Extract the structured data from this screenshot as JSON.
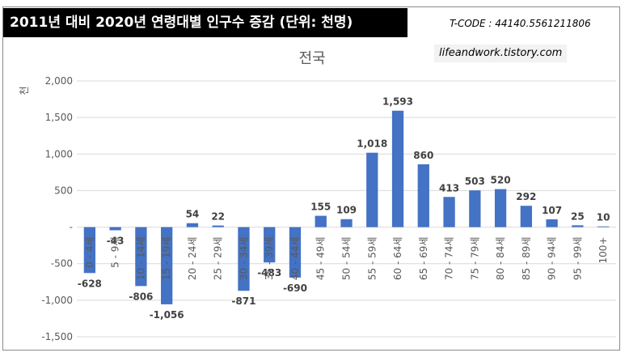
{
  "header": {
    "title": "2011년 대비 2020년 연령대별 인구수 증감 (단위: 천명)",
    "tcode": "T-CODE : 44140.5561211806",
    "blog": "lifeandwork.tistory.com"
  },
  "chart_data": {
    "type": "bar",
    "title": "전국",
    "ylabel": "천",
    "ylim": [
      -1500,
      2000
    ],
    "yticks": [
      2000,
      1500,
      1000,
      500,
      0,
      -500,
      -1000,
      -1500
    ],
    "ytick_labels": [
      "2,000",
      "1,500",
      "1,000",
      "500",
      "-",
      "-500",
      "-1,000",
      "-1,500"
    ],
    "categories": [
      "0 - 4세",
      "5 - 9세",
      "10 - 14세",
      "15 - 19세",
      "20 - 24세",
      "25 - 29세",
      "30 - 34세",
      "35 - 39세",
      "40 - 44세",
      "45 - 49세",
      "50 - 54세",
      "55 - 59세",
      "60 - 64세",
      "65 - 69세",
      "70 - 74세",
      "75 - 79세",
      "80 - 84세",
      "85 - 89세",
      "90 - 94세",
      "95 - 99세",
      "100+"
    ],
    "values": [
      -628,
      -43,
      -806,
      -1056,
      54,
      22,
      -871,
      -483,
      -690,
      155,
      109,
      1018,
      1593,
      860,
      413,
      503,
      520,
      292,
      107,
      25,
      10
    ],
    "value_labels": [
      "-628",
      "-43",
      "-806",
      "-1,056",
      "54",
      "22",
      "-871",
      "-483",
      "-690",
      "155",
      "109",
      "1,018",
      "1,593",
      "860",
      "413",
      "503",
      "520",
      "292",
      "107",
      "25",
      "10"
    ],
    "bar_color": "#4472c4",
    "grid": true,
    "legend": "none"
  }
}
